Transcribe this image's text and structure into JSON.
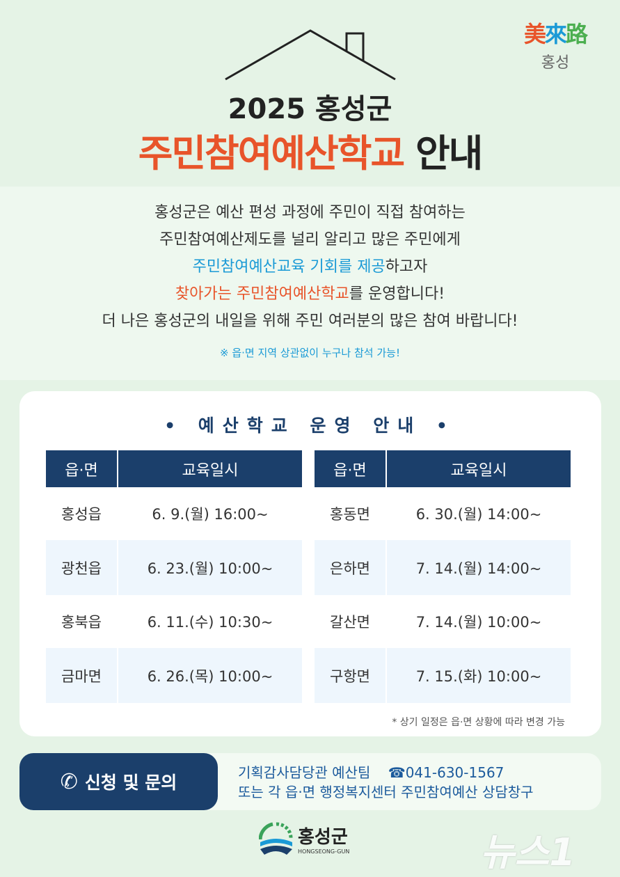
{
  "logo_top": {
    "hanja": "美來路",
    "name": "홍성"
  },
  "title": {
    "line1": "2025 홍성군",
    "highlight": "주민참여예산학교",
    "suffix": " 안내"
  },
  "intro": {
    "line1": "홍성군은 예산 편성 과정에 주민이 직접 참여하는",
    "line2": "주민참여예산제도를 널리 알리고 많은 주민에게",
    "line3_blue": "주민참여예산교육 기회를 제공",
    "line3_rest": "하고자",
    "line4_orange": "찾아가는 주민참여예산학교",
    "line4_rest": "를 운영합니다!",
    "line5": "더 나은 홍성군의 내일을 위해 주민 여러분의 많은 참여 바랍니다!",
    "note": "※ 읍·면 지역 상관없이 누구나 참석 가능!"
  },
  "schedule": {
    "title": "• 예산학교 운영 안내 •",
    "headers": [
      "읍·면",
      "교육일시"
    ],
    "left": [
      [
        "홍성읍",
        "6.   9.(월) 16:00~"
      ],
      [
        "광천읍",
        "6. 23.(월) 10:00~"
      ],
      [
        "홍북읍",
        "6. 11.(수) 10:30~"
      ],
      [
        "금마면",
        "6. 26.(목) 10:00~"
      ]
    ],
    "right": [
      [
        "홍동면",
        "6. 30.(월) 14:00~"
      ],
      [
        "은하면",
        "7. 14.(월) 14:00~"
      ],
      [
        "갈산면",
        "7. 14.(월) 10:00~"
      ],
      [
        "구항면",
        "7. 15.(화) 10:00~"
      ]
    ],
    "footnote": "* 상기 일정은 읍·면 상황에 따라 변경 가능"
  },
  "contact": {
    "button": "신청 및 문의",
    "dept": "기획감사담당관 예산팀",
    "phone": "☎041-630-1567",
    "line2": "또는 각 읍·면 행정복지센터 주민참여예산 상담창구"
  },
  "footer": {
    "logo_name": "홍성군",
    "logo_en": "HONGSEONG-GUN",
    "watermark": "뉴스1"
  },
  "colors": {
    "navy": "#1b3f6b",
    "orange": "#e8542a",
    "blue": "#1a9ad6",
    "background": "#e5f3e6"
  }
}
